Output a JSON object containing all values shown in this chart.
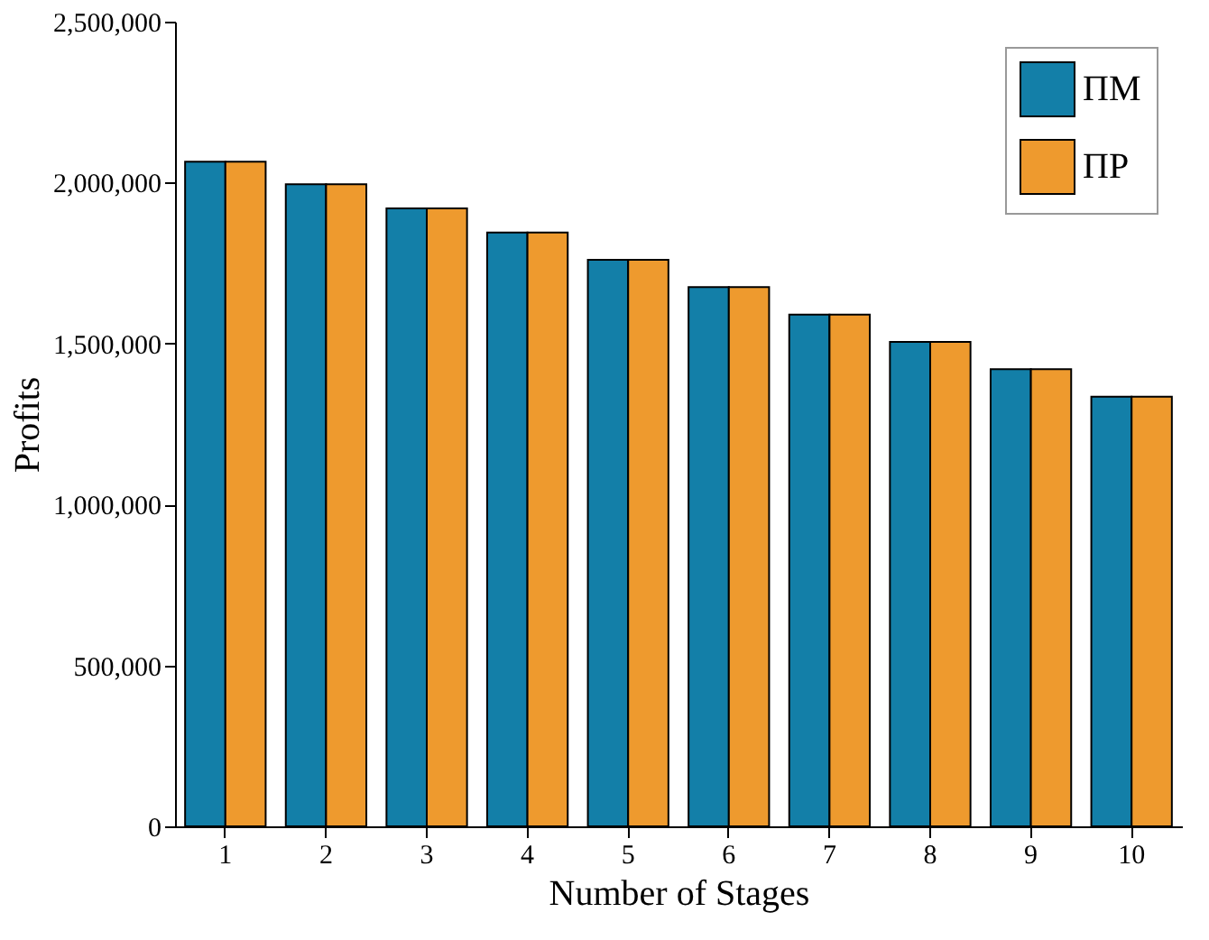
{
  "chart_data": {
    "type": "bar",
    "xlabel": "Number of Stages",
    "ylabel": "Profits",
    "categories": [
      "1",
      "2",
      "3",
      "4",
      "5",
      "6",
      "7",
      "8",
      "9",
      "10"
    ],
    "series": [
      {
        "name": "ΠM",
        "color": "#137fa8",
        "values": [
          2065000,
          1995000,
          1920000,
          1845000,
          1760000,
          1675000,
          1590000,
          1505000,
          1420000,
          1335000
        ]
      },
      {
        "name": "ΠP",
        "color": "#ee9a2e",
        "values": [
          2065000,
          1995000,
          1920000,
          1845000,
          1760000,
          1675000,
          1590000,
          1505000,
          1420000,
          1335000
        ]
      }
    ],
    "ylim": [
      0,
      2500000
    ],
    "yticks": [
      0,
      {
        "value": 500000,
        "label": "500,000"
      },
      {
        "value": 1000000,
        "label": "1,000,000"
      },
      {
        "value": 1500000,
        "label": "1,500,000"
      },
      {
        "value": 2000000,
        "label": "2,000,000"
      },
      {
        "value": 2500000,
        "label": "2,500,000"
      }
    ],
    "grid": false,
    "legend": "top right"
  }
}
